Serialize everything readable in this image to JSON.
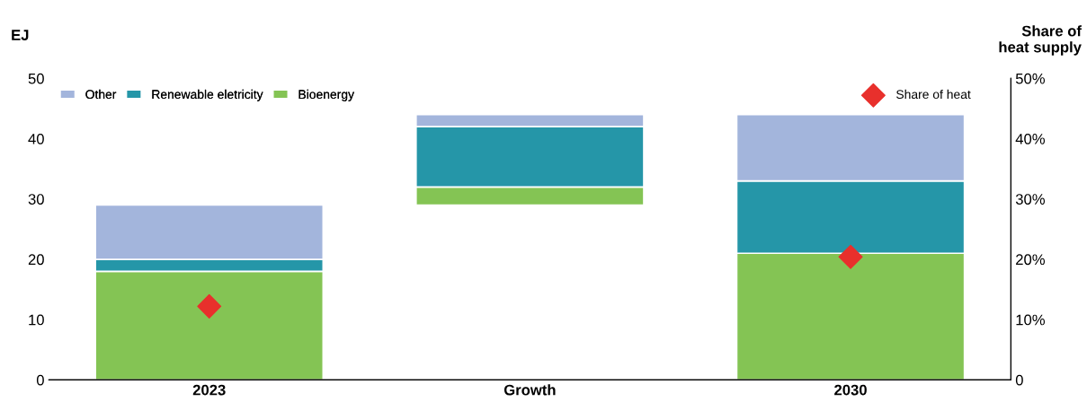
{
  "chart_data": {
    "type": "bar",
    "ylabel": "EJ",
    "y2label": "Share of\nheat supply",
    "categories": [
      "2023",
      "Growth",
      "2030"
    ],
    "series": [
      {
        "name": "Bioenergy",
        "color": "#84c454",
        "base": [
          0,
          29,
          0
        ],
        "values": [
          18,
          3,
          21
        ]
      },
      {
        "name": "Renewable eletricity",
        "color": "#2596a8",
        "base": [
          18,
          32,
          21
        ],
        "values": [
          2,
          10,
          12
        ]
      },
      {
        "name": "Other",
        "color": "#a3b5dc",
        "base": [
          20,
          42,
          33
        ],
        "values": [
          9,
          2,
          11
        ]
      },
      {
        "name": "Share of heat",
        "type": "scatter",
        "axis": "y2",
        "color": "#e8302c",
        "marker": "diamond",
        "values": [
          12.2,
          null,
          20.4
        ]
      }
    ],
    "ylim": [
      0,
      50
    ],
    "yticks": [
      0,
      10,
      20,
      30,
      40,
      50
    ],
    "y2lim": [
      0,
      50
    ],
    "y2ticks": [
      0,
      {
        "value": 10,
        "label": "10%"
      },
      {
        "value": 20,
        "label": "20%"
      },
      {
        "value": 30,
        "label": "30%"
      },
      {
        "value": 40,
        "label": "40%"
      },
      {
        "value": 50,
        "label": "50%"
      }
    ],
    "legend": "top",
    "grid": false
  }
}
